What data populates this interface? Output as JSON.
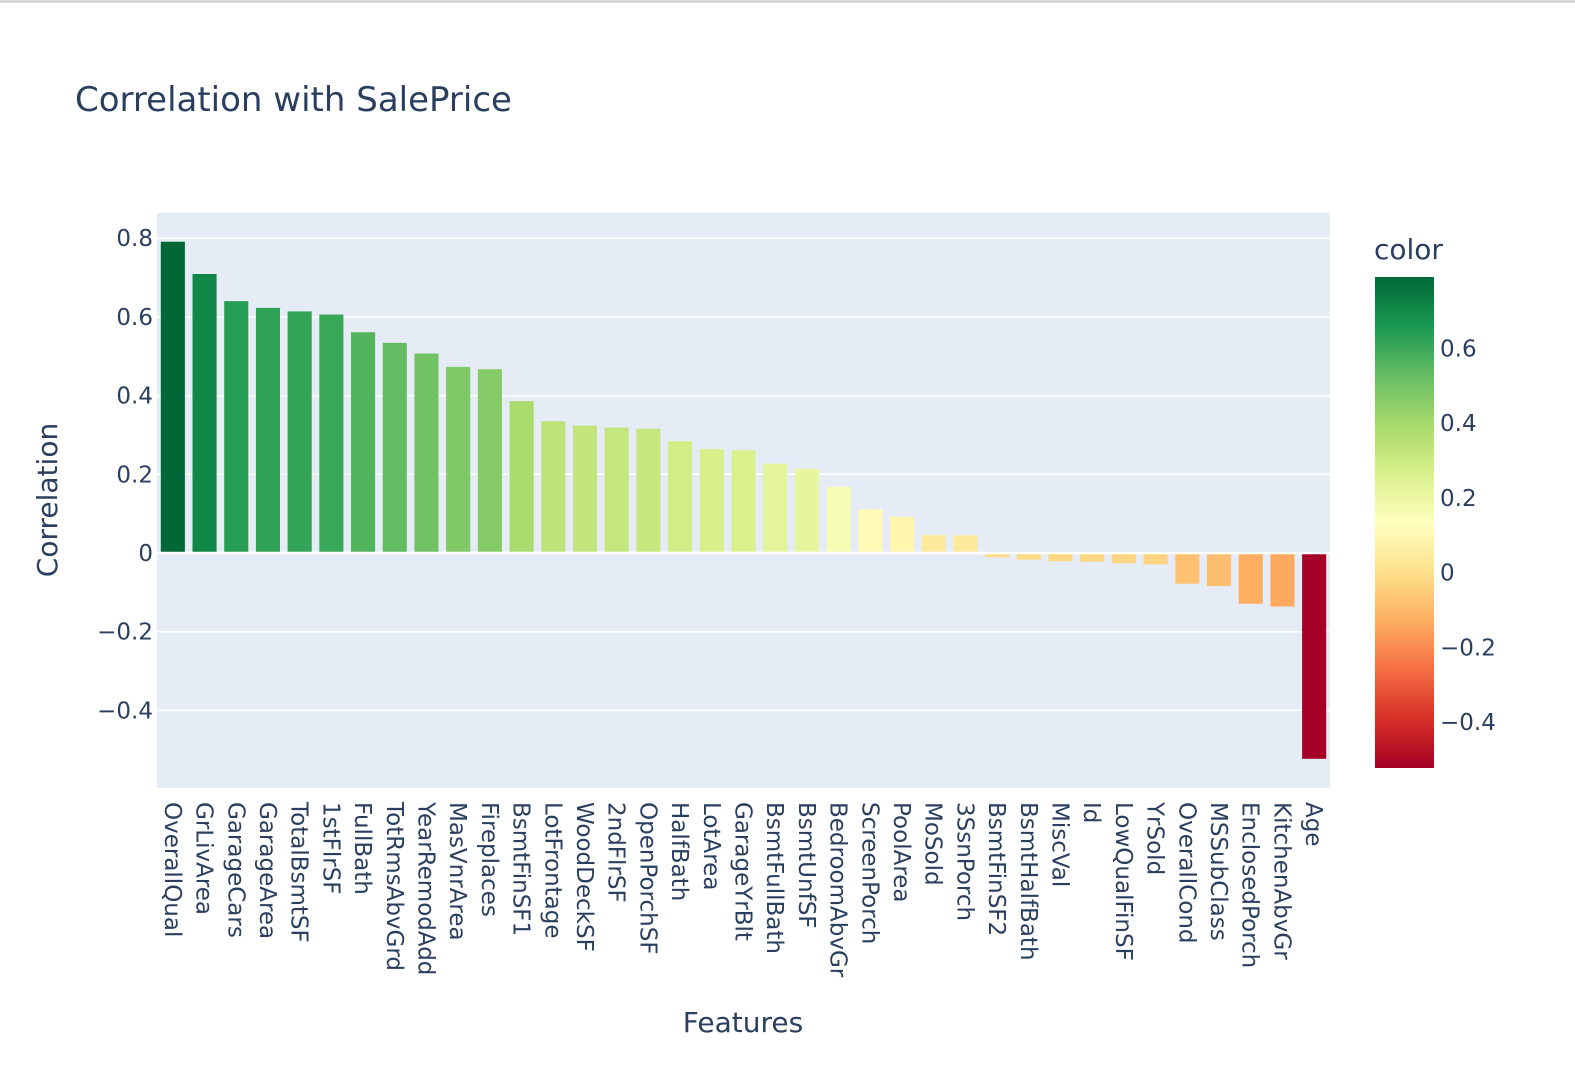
{
  "chart_data": {
    "type": "bar",
    "title": "Correlation with SalePrice",
    "xlabel": "Features",
    "ylabel": "Correlation",
    "colorbar_title": "color",
    "ylim": [
      -0.6,
      0.865
    ],
    "yticks": [
      -0.4,
      -0.2,
      0,
      0.2,
      0.4,
      0.6,
      0.8
    ],
    "ytick_labels": [
      "−0.4",
      "−0.2",
      "0",
      "0.2",
      "0.4",
      "0.6",
      "0.8"
    ],
    "colorbar_range": [
      -0.523,
      0.791
    ],
    "colorbar_ticks": [
      -0.4,
      -0.2,
      0,
      0.2,
      0.4,
      0.6
    ],
    "colorbar_tick_labels": [
      "−0.4",
      "−0.2",
      "0",
      "0.2",
      "0.4",
      "0.6"
    ],
    "colorscale": "RdYlGn",
    "grid": true,
    "categories": [
      "OverallQual",
      "GrLivArea",
      "GarageCars",
      "GarageArea",
      "TotalBsmtSF",
      "1stFlrSF",
      "FullBath",
      "TotRmsAbvGrd",
      "YearRemodAdd",
      "MasVnrArea",
      "Fireplaces",
      "BsmtFinSF1",
      "LotFrontage",
      "WoodDeckSF",
      "2ndFlrSF",
      "OpenPorchSF",
      "HalfBath",
      "LotArea",
      "GarageYrBlt",
      "BsmtFullBath",
      "BsmtUnfSF",
      "BedroomAbvGr",
      "ScreenPorch",
      "PoolArea",
      "MoSold",
      "3SsnPorch",
      "BsmtFinSF2",
      "BsmtHalfBath",
      "MiscVal",
      "Id",
      "LowQualFinSF",
      "YrSold",
      "OverallCond",
      "MSSubClass",
      "EnclosedPorch",
      "KitchenAbvGr",
      "Age"
    ],
    "values": [
      0.791,
      0.709,
      0.64,
      0.623,
      0.614,
      0.606,
      0.561,
      0.534,
      0.507,
      0.473,
      0.467,
      0.386,
      0.335,
      0.324,
      0.319,
      0.316,
      0.284,
      0.264,
      0.261,
      0.227,
      0.214,
      0.168,
      0.111,
      0.092,
      0.046,
      0.045,
      -0.011,
      -0.017,
      -0.021,
      -0.022,
      -0.026,
      -0.029,
      -0.078,
      -0.084,
      -0.129,
      -0.136,
      -0.523
    ]
  }
}
